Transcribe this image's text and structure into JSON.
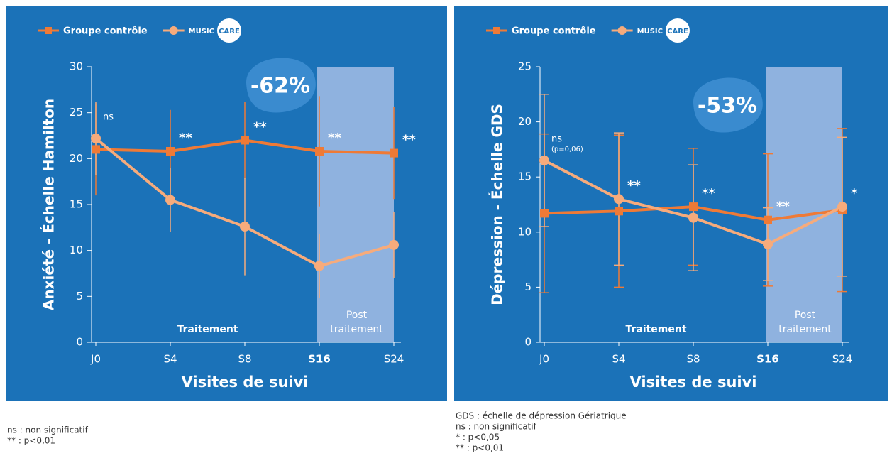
{
  "chart_data": [
    {
      "type": "line",
      "ylabel": "Anxiété - Échelle Hamilton",
      "xlabel": "Visites de suivi",
      "categories": [
        "J0",
        "S4",
        "S8",
        "S16",
        "S24"
      ],
      "ylim": [
        0,
        30
      ],
      "yticks": [
        0,
        5,
        10,
        15,
        20,
        25,
        30
      ],
      "series": [
        {
          "name": "Groupe contrôle",
          "color": "#ef7a36",
          "marker": "square",
          "values": [
            21,
            20.8,
            22,
            20.8,
            20.6
          ],
          "errors": [
            5,
            4.5,
            4.2,
            6,
            5
          ]
        },
        {
          "name": "MUSIC",
          "color": "#f6ab7c",
          "marker": "circle",
          "values": [
            22.2,
            15.5,
            12.6,
            8.3,
            10.6
          ],
          "errors": [
            4,
            3.5,
            5.3,
            3.5,
            3.6
          ]
        }
      ],
      "legend_badge": "CARE",
      "error_caps": false,
      "significance": [
        "ns",
        "**",
        "**",
        "**",
        "**"
      ],
      "highlight": "-62%",
      "treatment_label": "Traitement",
      "shaded": [
        "S16",
        "S24"
      ],
      "shaded_label": [
        "Post",
        "traitement"
      ],
      "footnotes": [
        "ns : non significatif",
        "** : p<0,01"
      ]
    },
    {
      "type": "line",
      "ylabel": "Dépression - Échelle GDS",
      "xlabel": "Visites de suivi",
      "categories": [
        "J0",
        "S4",
        "S8",
        "S16",
        "S24"
      ],
      "ylim": [
        0,
        25
      ],
      "yticks": [
        0,
        5,
        10,
        15,
        20,
        25
      ],
      "series": [
        {
          "name": "Groupe contrôle",
          "color": "#ef7a36",
          "marker": "square",
          "values": [
            11.7,
            11.9,
            12.3,
            11.1,
            12.0
          ],
          "errors": [
            7.2,
            6.9,
            5.3,
            6,
            7.4
          ]
        },
        {
          "name": "MUSIC",
          "color": "#f6ab7c",
          "marker": "circle",
          "values": [
            16.5,
            13.0,
            11.3,
            8.9,
            12.3
          ],
          "errors": [
            6,
            6,
            4.8,
            3.3,
            6.3
          ]
        }
      ],
      "legend_badge": "CARE",
      "error_caps": true,
      "significance": [
        "ns",
        "**",
        "**",
        "**",
        "*"
      ],
      "ns_detail": "(p=0,06)",
      "highlight": "-53%",
      "treatment_label": "Traitement",
      "shaded": [
        "S16",
        "S24"
      ],
      "shaded_label": [
        "Post",
        "traitement"
      ],
      "footnotes": [
        "GDS : échelle de dépression Gériatrique",
        "ns : non significatif",
        "* : p<0,05",
        "** : p<0,01"
      ]
    }
  ]
}
